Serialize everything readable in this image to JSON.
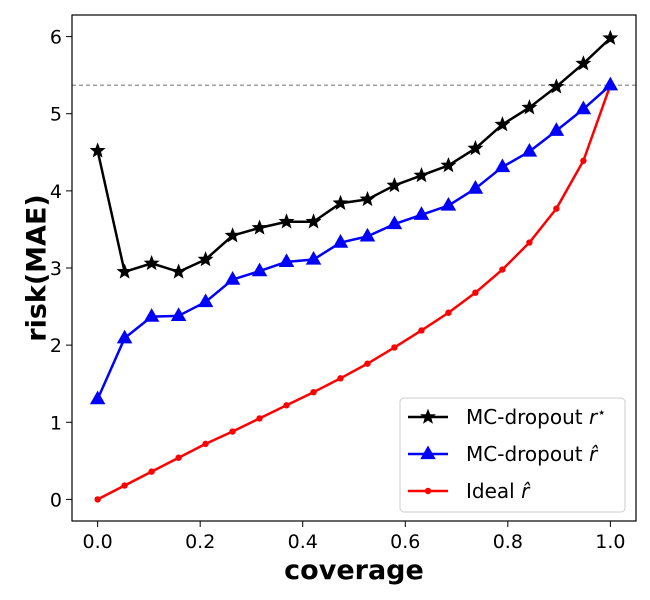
{
  "chart_data": {
    "type": "line",
    "xlabel": "coverage",
    "ylabel": "risk(MAE)",
    "xlim": [
      -0.05,
      1.05
    ],
    "ylim": [
      -0.28,
      6.28
    ],
    "xticks": [
      0.0,
      0.2,
      0.4,
      0.6,
      0.8,
      1.0
    ],
    "xtick_labels": [
      "0.0",
      "0.2",
      "0.4",
      "0.6",
      "0.8",
      "1.0"
    ],
    "yticks": [
      0,
      1,
      2,
      3,
      4,
      5,
      6
    ],
    "ytick_labels": [
      "0",
      "1",
      "2",
      "3",
      "4",
      "5",
      "6"
    ],
    "grid": false,
    "legend_position": "lower-right",
    "reference_line": {
      "y": 5.37,
      "style": "dashed",
      "color": "#808080"
    },
    "x": [
      0.0,
      0.0526,
      0.1053,
      0.1579,
      0.2105,
      0.2632,
      0.3158,
      0.3684,
      0.4211,
      0.4737,
      0.5263,
      0.5789,
      0.6316,
      0.6842,
      0.7368,
      0.7895,
      0.8421,
      0.8947,
      0.9474,
      1.0
    ],
    "series": [
      {
        "name": "MC-dropout r*",
        "color": "#000000",
        "marker": "star",
        "values": [
          4.52,
          2.95,
          3.06,
          2.95,
          3.11,
          3.42,
          3.52,
          3.6,
          3.6,
          3.84,
          3.89,
          4.07,
          4.2,
          4.33,
          4.55,
          4.86,
          5.08,
          5.35,
          5.65,
          5.98
        ]
      },
      {
        "name": "MC-dropout r̂",
        "color": "#0000ff",
        "marker": "triangle",
        "values": [
          1.3,
          2.09,
          2.37,
          2.38,
          2.56,
          2.85,
          2.96,
          3.08,
          3.11,
          3.33,
          3.41,
          3.57,
          3.69,
          3.81,
          4.03,
          4.31,
          4.51,
          4.78,
          5.06,
          5.37
        ]
      },
      {
        "name": "Ideal r̂",
        "color": "#ff0000",
        "marker": "circle",
        "values": [
          0.0,
          0.18,
          0.36,
          0.54,
          0.72,
          0.88,
          1.05,
          1.22,
          1.39,
          1.57,
          1.76,
          1.97,
          2.19,
          2.42,
          2.68,
          2.98,
          3.33,
          3.77,
          4.39,
          5.37
        ]
      }
    ]
  }
}
